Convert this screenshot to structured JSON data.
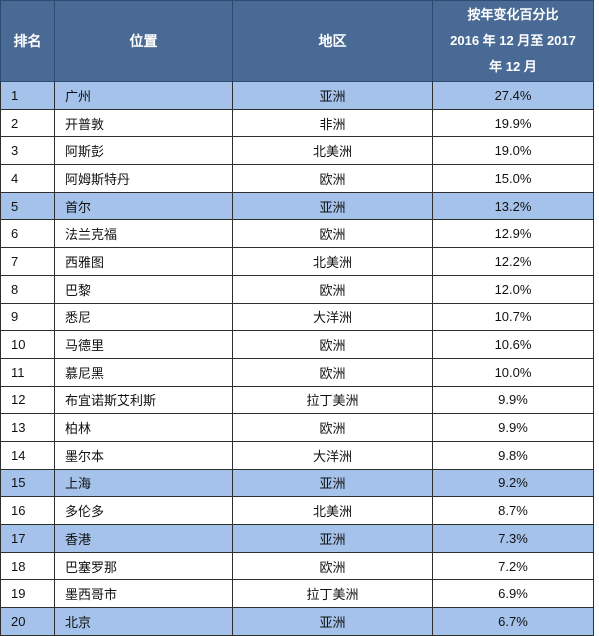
{
  "header": {
    "rank": "排名",
    "city": "位置",
    "region": "地区",
    "pct_line1": "按年变化百分比",
    "pct_line2": "2016 年 12 月至 2017",
    "pct_line3": "年 12 月"
  },
  "colors": {
    "header_bg": "#4a6a96",
    "highlight_row": "#a4c2ea"
  },
  "rows": [
    {
      "rank": "1",
      "city": "广州",
      "region": "亚洲",
      "pct": "27.4%",
      "highlight": true
    },
    {
      "rank": "2",
      "city": "开普敦",
      "region": "非洲",
      "pct": "19.9%",
      "highlight": false
    },
    {
      "rank": "3",
      "city": "阿斯彭",
      "region": "北美洲",
      "pct": "19.0%",
      "highlight": false
    },
    {
      "rank": "4",
      "city": "阿姆斯特丹",
      "region": "欧洲",
      "pct": "15.0%",
      "highlight": false
    },
    {
      "rank": "5",
      "city": "首尔",
      "region": "亚洲",
      "pct": "13.2%",
      "highlight": true
    },
    {
      "rank": "6",
      "city": "法兰克福",
      "region": "欧洲",
      "pct": "12.9%",
      "highlight": false
    },
    {
      "rank": "7",
      "city": "西雅图",
      "region": "北美洲",
      "pct": "12.2%",
      "highlight": false
    },
    {
      "rank": "8",
      "city": "巴黎",
      "region": "欧洲",
      "pct": "12.0%",
      "highlight": false
    },
    {
      "rank": "9",
      "city": "悉尼",
      "region": "大洋洲",
      "pct": "10.7%",
      "highlight": false
    },
    {
      "rank": "10",
      "city": "马德里",
      "region": "欧洲",
      "pct": "10.6%",
      "highlight": false
    },
    {
      "rank": "11",
      "city": "慕尼黑",
      "region": "欧洲",
      "pct": "10.0%",
      "highlight": false
    },
    {
      "rank": "12",
      "city": "布宜诺斯艾利斯",
      "region": "拉丁美洲",
      "pct": "9.9%",
      "highlight": false
    },
    {
      "rank": "13",
      "city": "柏林",
      "region": "欧洲",
      "pct": "9.9%",
      "highlight": false
    },
    {
      "rank": "14",
      "city": "墨尔本",
      "region": "大洋洲",
      "pct": "9.8%",
      "highlight": false
    },
    {
      "rank": "15",
      "city": "上海",
      "region": "亚洲",
      "pct": "9.2%",
      "highlight": true
    },
    {
      "rank": "16",
      "city": "多伦多",
      "region": "北美洲",
      "pct": "8.7%",
      "highlight": false
    },
    {
      "rank": "17",
      "city": "香港",
      "region": "亚洲",
      "pct": "7.3%",
      "highlight": true
    },
    {
      "rank": "18",
      "city": "巴塞罗那",
      "region": "欧洲",
      "pct": "7.2%",
      "highlight": false
    },
    {
      "rank": "19",
      "city": "墨西哥市",
      "region": "拉丁美洲",
      "pct": "6.9%",
      "highlight": false
    },
    {
      "rank": "20",
      "city": "北京",
      "region": "亚洲",
      "pct": "6.7%",
      "highlight": true
    }
  ]
}
